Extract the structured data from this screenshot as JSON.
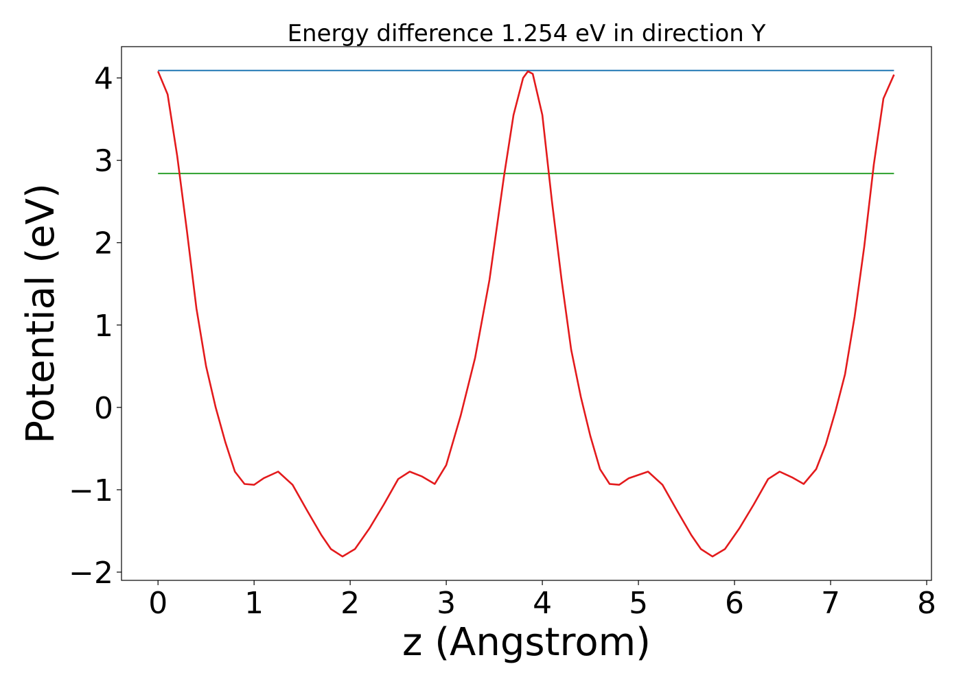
{
  "chart_data": {
    "type": "line",
    "title": "Energy difference 1.254 eV in direction Y",
    "xlabel": "z (Angstrom)",
    "ylabel": "Potential (eV)",
    "xlim": [
      -0.38,
      8.05
    ],
    "ylim": [
      -2.1,
      4.38
    ],
    "xticks": [
      0,
      1,
      2,
      3,
      4,
      5,
      6,
      7,
      8
    ],
    "xtick_labels": [
      "0",
      "1",
      "2",
      "3",
      "4",
      "5",
      "6",
      "7",
      "8"
    ],
    "yticks": [
      -2,
      -1,
      0,
      1,
      2,
      3,
      4
    ],
    "ytick_labels": [
      "−2",
      "−1",
      "0",
      "1",
      "2",
      "3",
      "4"
    ],
    "grid": false,
    "legend": "none",
    "series": [
      {
        "color": "#1f77b4",
        "x": [
          0,
          7.66
        ],
        "y": [
          4.09,
          4.09
        ]
      },
      {
        "color": "#2ca02c",
        "x": [
          0,
          7.66
        ],
        "y": [
          2.84,
          2.84
        ]
      },
      {
        "color": "#e31a1c",
        "x": [
          0,
          0.1,
          0.2,
          0.3,
          0.4,
          0.5,
          0.6,
          0.7,
          0.8,
          0.9,
          1.0,
          1.1,
          1.25,
          1.4,
          1.55,
          1.7,
          1.8,
          1.92,
          2.05,
          2.2,
          2.35,
          2.5,
          2.62,
          2.75,
          2.88,
          3.0,
          3.15,
          3.3,
          3.45,
          3.6,
          3.7,
          3.8,
          3.85,
          3.9,
          4.0,
          4.1,
          4.2,
          4.3,
          4.4,
          4.5,
          4.6,
          4.7,
          4.8,
          4.9,
          5.1,
          5.25,
          5.4,
          5.55,
          5.65,
          5.77,
          5.9,
          6.05,
          6.2,
          6.35,
          6.47,
          6.6,
          6.72,
          6.85,
          6.95,
          7.05,
          7.15,
          7.25,
          7.35,
          7.45,
          7.55,
          7.66
        ],
        "y": [
          4.08,
          3.8,
          3.05,
          2.15,
          1.2,
          0.5,
          0.0,
          -0.42,
          -0.78,
          -0.93,
          -0.94,
          -0.86,
          -0.78,
          -0.94,
          -1.25,
          -1.55,
          -1.72,
          -1.81,
          -1.72,
          -1.47,
          -1.18,
          -0.87,
          -0.78,
          -0.84,
          -0.93,
          -0.7,
          -0.1,
          0.6,
          1.55,
          2.8,
          3.55,
          4.0,
          4.08,
          4.05,
          3.55,
          2.5,
          1.55,
          0.7,
          0.13,
          -0.35,
          -0.75,
          -0.93,
          -0.94,
          -0.86,
          -0.78,
          -0.94,
          -1.25,
          -1.55,
          -1.72,
          -1.81,
          -1.72,
          -1.47,
          -1.18,
          -0.87,
          -0.78,
          -0.85,
          -0.93,
          -0.75,
          -0.45,
          -0.05,
          0.4,
          1.1,
          1.95,
          2.95,
          3.75,
          4.04
        ]
      }
    ]
  }
}
